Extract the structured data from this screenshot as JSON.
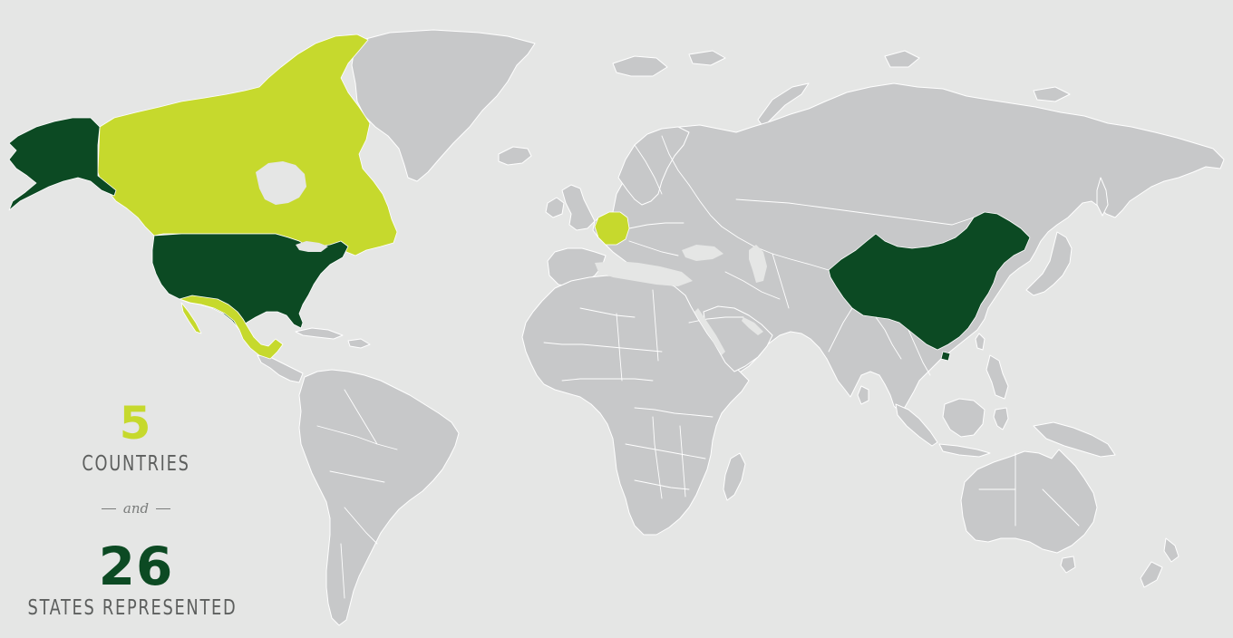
{
  "colors": {
    "background": "#e5e6e5",
    "land": "#c7c8c9",
    "highlight_light": "#c6d92d",
    "highlight_dark": "#0c4a23",
    "label_text": "#5d5f5e"
  },
  "stats": {
    "countries_count": "5",
    "countries_label": "COUNTRIES",
    "connector": "and",
    "states_count": "26",
    "states_label": "STATES REPRESENTED"
  },
  "map": {
    "highlighted_countries": [
      {
        "name": "United States",
        "shade": "dark"
      },
      {
        "name": "China",
        "shade": "dark"
      },
      {
        "name": "Canada",
        "shade": "light"
      },
      {
        "name": "Mexico",
        "shade": "light"
      },
      {
        "name": "Germany",
        "shade": "light"
      }
    ]
  }
}
